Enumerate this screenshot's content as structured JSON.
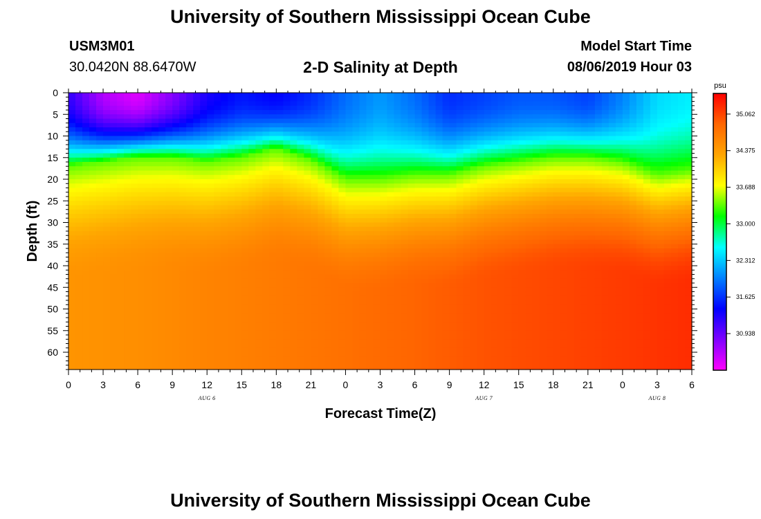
{
  "header": {
    "title": "University of Southern Mississippi Ocean Cube",
    "station_id": "USM3M01",
    "station_coords": "30.0420N 88.6470W",
    "plot_title": "2-D Salinity at Depth",
    "start_label": "Model Start Time",
    "start_time": "08/06/2019 Hour 03"
  },
  "footer": {
    "title": "University of Southern Mississippi Ocean Cube"
  },
  "chart_data": {
    "type": "heatmap",
    "title": "2-D Salinity at Depth",
    "xlabel": "Forecast Time(Z)",
    "ylabel": "Depth (ft)",
    "x_hours_range": [
      0,
      54
    ],
    "ylim": [
      0,
      64
    ],
    "x_tick_hours": [
      0,
      3,
      6,
      9,
      12,
      15,
      18,
      21,
      24,
      27,
      30,
      33,
      36,
      39,
      42,
      45,
      48,
      51,
      54
    ],
    "x_tick_labels": [
      "0",
      "3",
      "6",
      "9",
      "12",
      "15",
      "18",
      "21",
      "0",
      "3",
      "6",
      "9",
      "12",
      "15",
      "18",
      "21",
      "0",
      "3",
      "6"
    ],
    "y_ticks": [
      0,
      5,
      10,
      15,
      20,
      25,
      30,
      35,
      40,
      45,
      50,
      55,
      60
    ],
    "y_tick_labels": [
      "0",
      "5",
      "10",
      "15",
      "20",
      "25",
      "30",
      "35",
      "40",
      "45",
      "50",
      "55",
      "60"
    ],
    "date_labels": [
      {
        "text": "AUG 6",
        "hour": 12
      },
      {
        "text": "AUG 7",
        "hour": 36
      },
      {
        "text": "AUG 8",
        "hour": 51
      }
    ],
    "colorbar": {
      "unit": "psu",
      "min": 30.25,
      "max": 35.45,
      "ticks": [
        35.062,
        34.375,
        33.688,
        33.0,
        32.312,
        31.625,
        30.938
      ],
      "tick_labels": [
        "35.062",
        "34.375",
        "33.688",
        "33.000",
        "32.312",
        "31.625",
        "30.938"
      ],
      "colors": [
        "#ff00ff",
        "#7f00ff",
        "#0000ff",
        "#0080ff",
        "#00ffff",
        "#00ff00",
        "#ffff00",
        "#ffa500",
        "#ff6600",
        "#ff0000"
      ]
    },
    "halocline_mid_depth_ft": {
      "hours": [
        0,
        3,
        6,
        9,
        12,
        15,
        18,
        21,
        24,
        27,
        30,
        33,
        36,
        39,
        42,
        45,
        48,
        51,
        54
      ],
      "values": [
        17,
        16,
        15,
        15,
        16,
        15,
        13,
        15.5,
        20,
        20,
        19,
        19,
        17,
        16,
        15,
        15,
        16,
        19,
        18
      ]
    },
    "surface_min_salinity": {
      "hours": [
        0,
        3,
        6,
        9,
        12,
        15,
        18,
        21,
        24,
        27,
        30,
        33,
        36,
        39,
        42,
        45,
        48,
        51,
        54
      ],
      "values": [
        31.2,
        30.6,
        30.4,
        30.8,
        31.3,
        31.5,
        31.4,
        31.6,
        31.9,
        32.1,
        31.9,
        31.6,
        31.7,
        31.8,
        31.8,
        31.7,
        32.0,
        32.4,
        32.5
      ]
    },
    "deep_salinity": {
      "hours": [
        0,
        6,
        12,
        18,
        24,
        30,
        36,
        42,
        48,
        54
      ],
      "values": [
        34.45,
        34.5,
        34.6,
        34.68,
        34.78,
        34.88,
        34.98,
        35.05,
        35.12,
        35.2
      ]
    }
  }
}
